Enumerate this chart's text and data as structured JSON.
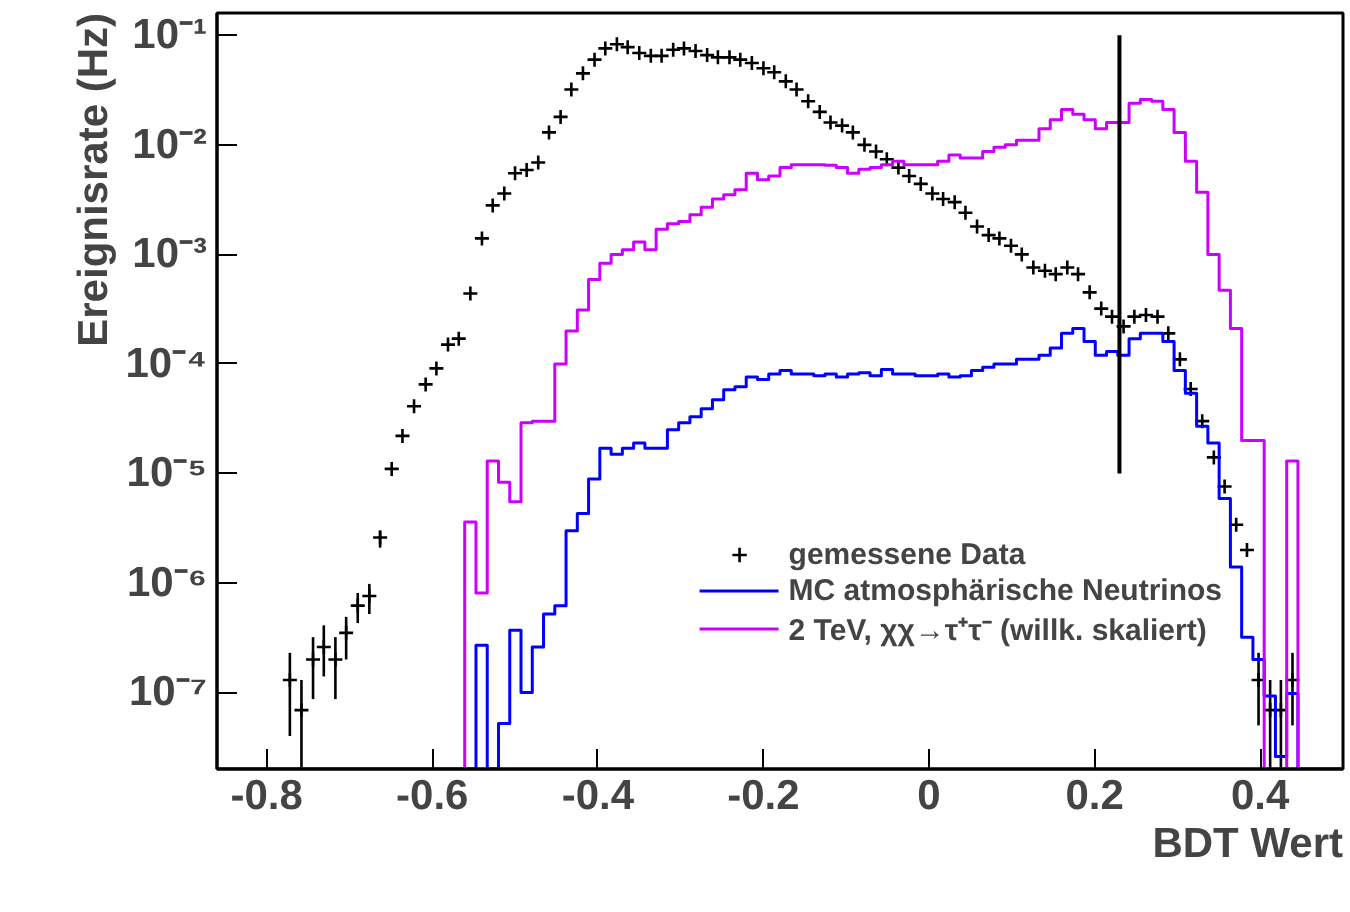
{
  "chart_data": {
    "type": "histogram",
    "xlabel": "BDT Wert",
    "ylabel": "Ereignisrate (Hz)",
    "xlim": [
      -0.86,
      0.5
    ],
    "ylim": [
      2e-08,
      0.16
    ],
    "log": "y",
    "grid": false,
    "legend": "bottom right",
    "xticks": [
      -0.8,
      -0.6,
      -0.4,
      -0.2,
      0,
      0.2,
      0.4
    ],
    "yticks": [
      {
        "value": 1e-07,
        "label": "10⁻⁷"
      },
      {
        "value": 1e-06,
        "label": "10⁻⁶"
      },
      {
        "value": 1e-05,
        "label": "10⁻⁵"
      },
      {
        "value": 0.0001,
        "label": "10⁻⁴"
      },
      {
        "value": 0.001,
        "label": "10⁻³"
      },
      {
        "value": 0.01,
        "label": "10⁻²"
      },
      {
        "value": 0.1,
        "label": "10⁻¹"
      }
    ],
    "bins": [
      -0.86,
      -0.8464,
      -0.8328,
      -0.8192,
      -0.8056,
      -0.792,
      -0.7784,
      -0.7648,
      -0.7512,
      -0.7376,
      -0.724,
      -0.7104,
      -0.6968,
      -0.6832,
      -0.6696,
      -0.656,
      -0.6424,
      -0.6288,
      -0.6152,
      -0.6016,
      -0.588,
      -0.5744,
      -0.5608,
      -0.5472,
      -0.5336,
      -0.52,
      -0.5064,
      -0.4928,
      -0.4792,
      -0.4656,
      -0.452,
      -0.4384,
      -0.4248,
      -0.4112,
      -0.3976,
      -0.384,
      -0.3704,
      -0.3568,
      -0.3432,
      -0.3296,
      -0.316,
      -0.3024,
      -0.2888,
      -0.2752,
      -0.2616,
      -0.248,
      -0.2344,
      -0.2208,
      -0.2072,
      -0.1936,
      -0.18,
      -0.1664,
      -0.1528,
      -0.1392,
      -0.1256,
      -0.112,
      -0.0984,
      -0.0848,
      -0.0712,
      -0.0576,
      -0.044,
      -0.0304,
      -0.0168,
      -0.0032,
      0.0104,
      0.024,
      0.0376,
      0.0512,
      0.0648,
      0.0784,
      0.092,
      0.1056,
      0.1192,
      0.1328,
      0.1464,
      0.16,
      0.1736,
      0.1872,
      0.2008,
      0.2144,
      0.228,
      0.2416,
      0.2552,
      0.2688,
      0.2824,
      0.296,
      0.3096,
      0.3232,
      0.3368,
      0.3504,
      0.364,
      0.3776,
      0.3912,
      0.4048,
      0.4184,
      0.432,
      0.4456,
      0.4592,
      0.4728,
      0.4864,
      0.5
    ],
    "series": [
      {
        "name": "gemessene Data",
        "type": "scatter",
        "color": "#000000",
        "marker": "cross",
        "x": [
          -0.772,
          -0.758,
          -0.744,
          -0.731,
          -0.717,
          -0.704,
          -0.69,
          -0.676,
          -0.663,
          -0.649,
          -0.636,
          -0.622,
          -0.608,
          -0.595,
          -0.581,
          -0.568,
          -0.554,
          -0.54,
          -0.527,
          -0.513,
          -0.5,
          -0.486,
          -0.472,
          -0.459,
          -0.445,
          -0.432,
          -0.418,
          -0.404,
          -0.391,
          -0.377,
          -0.364,
          -0.35,
          -0.336,
          -0.323,
          -0.309,
          -0.296,
          -0.282,
          -0.268,
          -0.255,
          -0.241,
          -0.228,
          -0.214,
          -0.2,
          -0.187,
          -0.173,
          -0.16,
          -0.146,
          -0.132,
          -0.119,
          -0.105,
          -0.092,
          -0.078,
          -0.064,
          -0.051,
          -0.037,
          -0.024,
          -0.01,
          0.004,
          0.017,
          0.031,
          0.044,
          0.058,
          0.072,
          0.085,
          0.099,
          0.112,
          0.126,
          0.14,
          0.153,
          0.167,
          0.18,
          0.194,
          0.208,
          0.221,
          0.235,
          0.248,
          0.262,
          0.276,
          0.289,
          0.303,
          0.316,
          0.33,
          0.344,
          0.357,
          0.371,
          0.384,
          0.398,
          0.412,
          0.425,
          0.439
        ],
        "values": [
          1.3e-07,
          6.9e-08,
          2e-07,
          2.6e-07,
          2e-07,
          3.5e-07,
          6.2e-07,
          7.6e-07,
          2.6e-06,
          1.1e-05,
          2.2e-05,
          4.1e-05,
          6.5e-05,
          9.1e-05,
          0.00015,
          0.00017,
          0.00044,
          0.0014,
          0.0028,
          0.0036,
          0.0055,
          0.0059,
          0.0069,
          0.013,
          0.018,
          0.032,
          0.045,
          0.06,
          0.076,
          0.083,
          0.078,
          0.069,
          0.065,
          0.065,
          0.074,
          0.076,
          0.072,
          0.066,
          0.063,
          0.063,
          0.06,
          0.056,
          0.05,
          0.046,
          0.038,
          0.032,
          0.025,
          0.02,
          0.016,
          0.015,
          0.013,
          0.01,
          0.0087,
          0.0074,
          0.0062,
          0.0052,
          0.0044,
          0.0036,
          0.0032,
          0.003,
          0.0024,
          0.0018,
          0.0015,
          0.0014,
          0.0012,
          0.001,
          0.00076,
          0.00071,
          0.00066,
          0.00076,
          0.00066,
          0.00045,
          0.00032,
          0.00027,
          0.00022,
          0.00027,
          0.00028,
          0.00027,
          0.00019,
          0.00011,
          5.9e-05,
          3e-05,
          1.4e-05,
          7.6e-06,
          3.4e-06,
          2e-06,
          1.3e-07,
          6.9e-08,
          6.9e-08,
          1.3e-07
        ],
        "errors": [
          [
            4e-08,
            2.3e-07
          ],
          [
            2e-08,
            1.3e-07
          ],
          [
            8.7e-08,
            3.2e-07
          ],
          [
            1.4e-07,
            4.1e-07
          ],
          [
            8.7e-08,
            3.2e-07
          ],
          [
            2e-07,
            4.9e-07
          ],
          [
            4.3e-07,
            8.1e-07
          ],
          [
            5.2e-07,
            9.8e-07
          ],
          [
            2.1e-06,
            3e-06
          ],
          null,
          null,
          null,
          null,
          null,
          null,
          null,
          null,
          null,
          null,
          null,
          null,
          null,
          null,
          null,
          null,
          null,
          null,
          null,
          null,
          null,
          null,
          null,
          null,
          null,
          null,
          null,
          null,
          null,
          null,
          null,
          null,
          null,
          null,
          null,
          null,
          null,
          null,
          null,
          null,
          null,
          null,
          null,
          null,
          null,
          null,
          null,
          null,
          null,
          null,
          null,
          null,
          null,
          null,
          null,
          null,
          null,
          null,
          null,
          null,
          null,
          null,
          null,
          null,
          null,
          null,
          null,
          null,
          null,
          null,
          null,
          null,
          null,
          null,
          null,
          null,
          null,
          [
            5e-08,
            2.3e-07
          ],
          [
            2e-08,
            1.3e-07
          ],
          [
            2e-08,
            1.3e-07
          ],
          [
            5e-08,
            2.3e-07
          ]
        ]
      },
      {
        "name": "MC atmosphärische Neutrinos",
        "color": "#0000ff",
        "values": [
          null,
          null,
          null,
          null,
          null,
          null,
          null,
          null,
          null,
          null,
          null,
          null,
          null,
          null,
          null,
          null,
          null,
          null,
          null,
          null,
          null,
          null,
          null,
          2.7e-07,
          null,
          5.2e-08,
          3.7e-07,
          1e-07,
          2.6e-07,
          5.2e-07,
          6.2e-07,
          3e-06,
          4.3e-06,
          8.9e-06,
          1.7e-05,
          1.5e-05,
          1.7e-05,
          1.9e-05,
          1.7e-05,
          1.7e-05,
          2.5e-05,
          2.9e-05,
          3.3e-05,
          3.9e-05,
          4.7e-05,
          5.8e-05,
          6.2e-05,
          7.6e-05,
          7.2e-05,
          8.1e-05,
          8.7e-05,
          8.1e-05,
          8.1e-05,
          7.8e-05,
          8.1e-05,
          7.6e-05,
          8.1e-05,
          8.3e-05,
          7.8e-05,
          8.9e-05,
          8.1e-05,
          8.1e-05,
          7.8e-05,
          7.8e-05,
          8.1e-05,
          7.6e-05,
          7.8e-05,
          8.7e-05,
          9.3e-05,
          0.0001,
          0.0001,
          0.00011,
          0.00011,
          0.00012,
          0.00014,
          0.00019,
          0.00021,
          0.00016,
          0.00012,
          0.00013,
          0.00012,
          0.00017,
          0.00019,
          0.00019,
          0.00016,
          8.7e-05,
          5.4e-05,
          2.7e-05,
          1.9e-05,
          5.9e-06,
          1.4e-06,
          3.2e-07,
          2e-07,
          9.3e-08,
          2.6e-08,
          9.8e-08,
          null,
          null,
          null,
          null
        ]
      },
      {
        "name": "2 TeV, χχ→τ⁺τ⁻ (willk. skaliert)",
        "color": "#cc00ff",
        "values": [
          null,
          null,
          null,
          null,
          null,
          null,
          null,
          null,
          null,
          null,
          null,
          null,
          null,
          null,
          null,
          null,
          null,
          null,
          null,
          null,
          null,
          null,
          3.6e-06,
          8.1e-07,
          1.3e-05,
          8.3e-06,
          5.5e-06,
          2.9e-05,
          3e-05,
          3e-05,
          0.0001,
          0.0002,
          0.00031,
          0.00059,
          0.00083,
          0.001,
          0.0011,
          0.0013,
          0.0011,
          0.0017,
          0.0019,
          0.002,
          0.0023,
          0.0027,
          0.0032,
          0.0035,
          0.0039,
          0.0055,
          0.0048,
          0.0052,
          0.0062,
          0.0066,
          0.0066,
          0.0066,
          0.0065,
          0.0062,
          0.0055,
          0.006,
          0.0062,
          0.0066,
          0.0071,
          0.0066,
          0.0066,
          0.0066,
          0.0071,
          0.0081,
          0.0076,
          0.0076,
          0.0087,
          0.0095,
          0.01,
          0.011,
          0.011,
          0.014,
          0.017,
          0.021,
          0.019,
          0.017,
          0.014,
          0.016,
          0.016,
          0.024,
          0.026,
          0.025,
          0.021,
          0.013,
          0.0071,
          0.0037,
          0.001,
          0.00047,
          0.00021,
          2e-05,
          2e-05,
          null,
          null,
          1.3e-05,
          null,
          null,
          null,
          null
        ]
      },
      {
        "type": "line",
        "color": "#000000",
        "x": [
          0.23,
          0.23
        ],
        "values": [
          0.1,
          1e-05
        ]
      }
    ]
  }
}
